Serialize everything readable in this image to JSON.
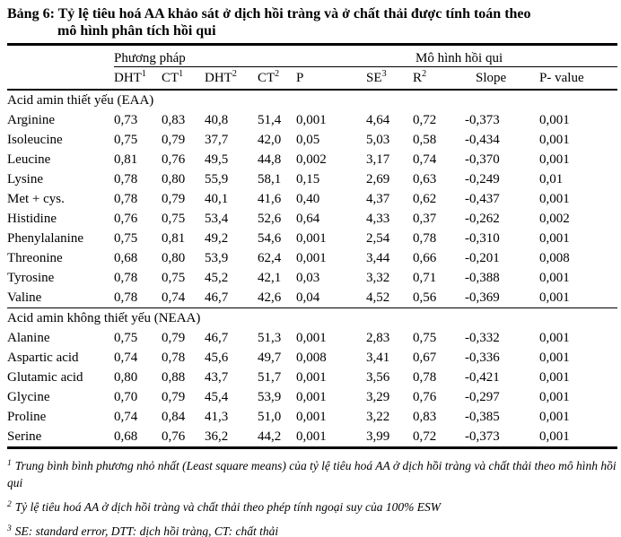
{
  "colors": {
    "text": "#000000",
    "background": "#ffffff",
    "border": "#000000"
  },
  "title": {
    "line1": "Bảng 6: Tỷ lệ tiêu hoá AA khảo sát ở dịch hồi tràng và ở chất thải được tính toán theo",
    "line2": "mô hình phân tích hồi qui"
  },
  "table": {
    "group_headers": [
      {
        "label": "Phương pháp"
      },
      {
        "label": "Mô hình hồi qui"
      }
    ],
    "columns": [
      {
        "base": "DHT",
        "sup": "1"
      },
      {
        "base": "CT",
        "sup": "1"
      },
      {
        "base": "DHT",
        "sup": "2"
      },
      {
        "base": "CT",
        "sup": "2"
      },
      {
        "base": "P",
        "sup": ""
      },
      {
        "base": "SE",
        "sup": "3"
      },
      {
        "base": "R",
        "sup": "2"
      },
      {
        "base": "Slope",
        "sup": ""
      },
      {
        "base": "P- value",
        "sup": ""
      }
    ],
    "sections": [
      {
        "header": "Acid amin thiết yếu (EAA)",
        "rows": [
          {
            "name": "Arginine",
            "values": [
              "0,73",
              "0,83",
              "40,8",
              "51,4",
              "0,001",
              "4,64",
              "0,72",
              "-0,373",
              "0,001"
            ]
          },
          {
            "name": "Isoleucine",
            "values": [
              "0,75",
              "0,79",
              "37,7",
              "42,0",
              "0,05",
              "5,03",
              "0,58",
              "-0,434",
              "0,001"
            ]
          },
          {
            "name": "Leucine",
            "values": [
              "0,81",
              "0,76",
              "49,5",
              "44,8",
              "0,002",
              "3,17",
              "0,74",
              "-0,370",
              "0,001"
            ]
          },
          {
            "name": "Lysine",
            "values": [
              "0,78",
              "0,80",
              "55,9",
              "58,1",
              "0,15",
              "2,69",
              "0,63",
              "-0,249",
              "0,01"
            ]
          },
          {
            "name": "Met + cys.",
            "values": [
              "0,78",
              "0,79",
              "40,1",
              "41,6",
              "0,40",
              "4,37",
              "0,62",
              "-0,437",
              "0,001"
            ]
          },
          {
            "name": "Histidine",
            "values": [
              "0,76",
              "0,75",
              "53,4",
              "52,6",
              "0,64",
              "4,33",
              "0,37",
              "-0,262",
              "0,002"
            ]
          },
          {
            "name": "Phenylalanine",
            "values": [
              "0,75",
              "0,81",
              "49,2",
              "54,6",
              "0,001",
              "2,54",
              "0,78",
              "-0,310",
              "0,001"
            ]
          },
          {
            "name": "Threonine",
            "values": [
              "0,68",
              "0,80",
              "53,9",
              "62,4",
              "0,001",
              "3,44",
              "0,66",
              "-0,201",
              "0,008"
            ]
          },
          {
            "name": "Tyrosine",
            "values": [
              "0,78",
              "0,75",
              "45,2",
              "42,1",
              "0,03",
              "3,32",
              "0,71",
              "-0,388",
              "0,001"
            ]
          },
          {
            "name": "Valine",
            "values": [
              "0,78",
              "0,74",
              "46,7",
              "42,6",
              "0,04",
              "4,52",
              "0,56",
              "-0,369",
              "0,001"
            ]
          }
        ]
      },
      {
        "header": "Acid amin không thiết yếu (NEAA)",
        "rows": [
          {
            "name": "Alanine",
            "values": [
              "0,75",
              "0,79",
              "46,7",
              "51,3",
              "0,001",
              "2,83",
              "0,75",
              "-0,332",
              "0,001"
            ]
          },
          {
            "name": "Aspartic acid",
            "values": [
              "0,74",
              "0,78",
              "45,6",
              "49,7",
              "0,008",
              "3,41",
              "0,67",
              "-0,336",
              "0,001"
            ]
          },
          {
            "name": "Glutamic acid",
            "values": [
              "0,80",
              "0,88",
              "43,7",
              "51,7",
              "0,001",
              "3,56",
              "0,78",
              "-0,421",
              "0,001"
            ]
          },
          {
            "name": "Glycine",
            "values": [
              "0,70",
              "0,79",
              "45,4",
              "53,9",
              "0,001",
              "3,29",
              "0,76",
              "-0,297",
              "0,001"
            ]
          },
          {
            "name": "Proline",
            "values": [
              "0,74",
              "0,84",
              "41,3",
              "51,0",
              "0,001",
              "3,22",
              "0,83",
              "-0,385",
              "0,001"
            ]
          },
          {
            "name": "Serine",
            "values": [
              "0,68",
              "0,76",
              "36,2",
              "44,2",
              "0,001",
              "3,99",
              "0,72",
              "-0,373",
              "0,001"
            ]
          }
        ]
      }
    ]
  },
  "footnotes": [
    {
      "sup": "1",
      "text": "Trung bình bình phương nhỏ nhất (Least square means) của tỷ lệ tiêu hoá AA ở dịch hồi tràng và chất thải theo mô hình hồi qui"
    },
    {
      "sup": "2",
      "text": "Tỷ lệ tiêu hoá AA ở dịch hồi tràng và chất thải theo phép tính ngoại suy của 100% ESW"
    },
    {
      "sup": "3",
      "text": "SE: standard error, DTT: dịch hồi tràng, CT: chất thải"
    }
  ]
}
